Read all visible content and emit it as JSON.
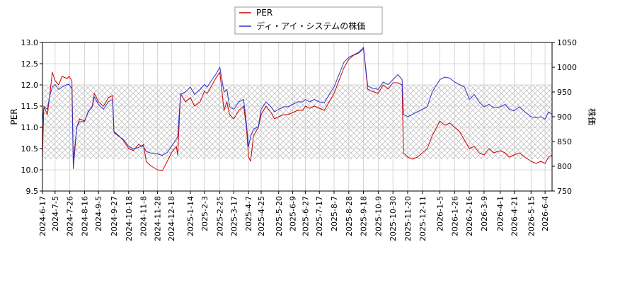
{
  "chart_data": {
    "type": "line",
    "title": "",
    "legend": {
      "placement": "top-center",
      "entries": [
        {
          "label": "PER",
          "color": "#cc0000"
        },
        {
          "label": "ディ・アイ・システムの株価",
          "color": "#3333cc"
        }
      ]
    },
    "y_left": {
      "label": "PER",
      "ylim": [
        9.5,
        13.0
      ],
      "ticks": [
        "9.5",
        "10.0",
        "10.5",
        "11.0",
        "11.5",
        "12.0",
        "12.5",
        "13.0"
      ]
    },
    "y_right": {
      "label": "株価",
      "ylim": [
        750,
        1050
      ],
      "ticks": [
        "750",
        "800",
        "850",
        "900",
        "950",
        "1000",
        "1050"
      ]
    },
    "shaded_band": {
      "per_range": [
        10.25,
        12.0
      ],
      "pattern": "cross-hatch"
    },
    "grid": true,
    "x_range": [
      "2024-06-17",
      "2026-06-14"
    ],
    "x_ticks": [
      "2024-6-17",
      "2024-7-5",
      "2024-7-26",
      "2024-8-16",
      "2024-9-5",
      "2024-9-27",
      "2024-10-18",
      "2024-11-8",
      "2024-11-28",
      "2024-12-18",
      "2025-1-14",
      "2025-2-3",
      "2025-2-25",
      "2025-3-17",
      "2025-4-7",
      "2025-4-25",
      "2025-5-20",
      "2025-6-9",
      "2025-6-27",
      "2025-7-17",
      "2025-8-7",
      "2025-8-28",
      "2025-9-18",
      "2025-10-9",
      "2025-10-30",
      "2025-11-20",
      "2025-12-11",
      "2026-1-5",
      "2026-1-26",
      "2026-2-16",
      "2026-3-9",
      "2026-4-1",
      "2026-4-21",
      "2026-5-15",
      "2026-6-4"
    ],
    "series": [
      {
        "name": "PER",
        "color": "#cc0000",
        "axis": "left",
        "points": [
          [
            "2024-06-17",
            10.3
          ],
          [
            "2024-06-19",
            11.5
          ],
          [
            "2024-06-24",
            11.3
          ],
          [
            "2024-06-27",
            11.7
          ],
          [
            "2024-07-01",
            12.3
          ],
          [
            "2024-07-05",
            12.1
          ],
          [
            "2024-07-10",
            12.0
          ],
          [
            "2024-07-15",
            12.2
          ],
          [
            "2024-07-22",
            12.15
          ],
          [
            "2024-07-25",
            12.2
          ],
          [
            "2024-07-29",
            12.1
          ],
          [
            "2024-07-31",
            10.2
          ],
          [
            "2024-08-05",
            11.0
          ],
          [
            "2024-08-09",
            11.2
          ],
          [
            "2024-08-16",
            11.15
          ],
          [
            "2024-08-21",
            11.35
          ],
          [
            "2024-08-27",
            11.5
          ],
          [
            "2024-08-30",
            11.8
          ],
          [
            "2024-09-05",
            11.6
          ],
          [
            "2024-09-12",
            11.5
          ],
          [
            "2024-09-19",
            11.7
          ],
          [
            "2024-09-25",
            11.75
          ],
          [
            "2024-09-27",
            10.9
          ],
          [
            "2024-10-04",
            10.8
          ],
          [
            "2024-10-10",
            10.7
          ],
          [
            "2024-10-18",
            10.5
          ],
          [
            "2024-10-25",
            10.45
          ],
          [
            "2024-11-01",
            10.6
          ],
          [
            "2024-11-06",
            10.55
          ],
          [
            "2024-11-08",
            10.6
          ],
          [
            "2024-11-12",
            10.2
          ],
          [
            "2024-11-18",
            10.1
          ],
          [
            "2024-11-28",
            10.0
          ],
          [
            "2024-12-05",
            9.98
          ],
          [
            "2024-12-12",
            10.2
          ],
          [
            "2024-12-18",
            10.4
          ],
          [
            "2024-12-25",
            10.55
          ],
          [
            "2024-12-27",
            10.35
          ],
          [
            "2024-12-31",
            11.8
          ],
          [
            "2025-01-07",
            11.6
          ],
          [
            "2025-01-14",
            11.7
          ],
          [
            "2025-01-20",
            11.5
          ],
          [
            "2025-01-28",
            11.6
          ],
          [
            "2025-02-03",
            11.85
          ],
          [
            "2025-02-07",
            11.8
          ],
          [
            "2025-02-14",
            12.0
          ],
          [
            "2025-02-19",
            12.15
          ],
          [
            "2025-02-25",
            12.3
          ],
          [
            "2025-03-03",
            11.4
          ],
          [
            "2025-03-07",
            11.6
          ],
          [
            "2025-03-11",
            11.3
          ],
          [
            "2025-03-17",
            11.2
          ],
          [
            "2025-03-24",
            11.4
          ],
          [
            "2025-03-31",
            11.5
          ],
          [
            "2025-04-04",
            11.0
          ],
          [
            "2025-04-07",
            10.3
          ],
          [
            "2025-04-10",
            10.2
          ],
          [
            "2025-04-14",
            10.8
          ],
          [
            "2025-04-21",
            11.0
          ],
          [
            "2025-04-25",
            11.3
          ],
          [
            "2025-05-02",
            11.5
          ],
          [
            "2025-05-09",
            11.35
          ],
          [
            "2025-05-14",
            11.2
          ],
          [
            "2025-05-20",
            11.25
          ],
          [
            "2025-05-27",
            11.3
          ],
          [
            "2025-06-02",
            11.3
          ],
          [
            "2025-06-09",
            11.35
          ],
          [
            "2025-06-16",
            11.4
          ],
          [
            "2025-06-23",
            11.4
          ],
          [
            "2025-06-27",
            11.5
          ],
          [
            "2025-07-03",
            11.45
          ],
          [
            "2025-07-10",
            11.5
          ],
          [
            "2025-07-17",
            11.45
          ],
          [
            "2025-07-24",
            11.4
          ],
          [
            "2025-07-31",
            11.6
          ],
          [
            "2025-08-07",
            11.8
          ],
          [
            "2025-08-14",
            12.1
          ],
          [
            "2025-08-21",
            12.4
          ],
          [
            "2025-08-28",
            12.6
          ],
          [
            "2025-09-04",
            12.7
          ],
          [
            "2025-09-11",
            12.75
          ],
          [
            "2025-09-18",
            12.85
          ],
          [
            "2025-09-24",
            11.9
          ],
          [
            "2025-09-30",
            11.85
          ],
          [
            "2025-10-09",
            11.8
          ],
          [
            "2025-10-16",
            12.0
          ],
          [
            "2025-10-23",
            11.9
          ],
          [
            "2025-10-30",
            12.05
          ],
          [
            "2025-11-06",
            12.05
          ],
          [
            "2025-11-12",
            12.0
          ],
          [
            "2025-11-14",
            10.4
          ],
          [
            "2025-11-20",
            10.3
          ],
          [
            "2025-11-27",
            10.25
          ],
          [
            "2025-12-04",
            10.3
          ],
          [
            "2025-12-11",
            10.4
          ],
          [
            "2025-12-18",
            10.5
          ],
          [
            "2025-12-25",
            10.8
          ],
          [
            "2026-01-05",
            11.15
          ],
          [
            "2026-01-12",
            11.05
          ],
          [
            "2026-01-19",
            11.1
          ],
          [
            "2026-01-26",
            11.0
          ],
          [
            "2026-02-02",
            10.9
          ],
          [
            "2026-02-09",
            10.7
          ],
          [
            "2026-02-16",
            10.5
          ],
          [
            "2026-02-23",
            10.55
          ],
          [
            "2026-03-02",
            10.4
          ],
          [
            "2026-03-09",
            10.35
          ],
          [
            "2026-03-16",
            10.5
          ],
          [
            "2026-03-23",
            10.4
          ],
          [
            "2026-04-01",
            10.45
          ],
          [
            "2026-04-08",
            10.4
          ],
          [
            "2026-04-14",
            10.3
          ],
          [
            "2026-04-21",
            10.35
          ],
          [
            "2026-04-28",
            10.4
          ],
          [
            "2026-05-06",
            10.3
          ],
          [
            "2026-05-15",
            10.2
          ],
          [
            "2026-05-22",
            10.15
          ],
          [
            "2026-05-29",
            10.2
          ],
          [
            "2026-06-04",
            10.15
          ],
          [
            "2026-06-09",
            10.3
          ],
          [
            "2026-06-14",
            10.35
          ]
        ]
      },
      {
        "name": "ディ・アイ・システムの株価",
        "color": "#3333cc",
        "axis": "right",
        "points": [
          [
            "2024-06-17",
            890
          ],
          [
            "2024-06-19",
            920
          ],
          [
            "2024-06-24",
            915
          ],
          [
            "2024-06-27",
            940
          ],
          [
            "2024-07-01",
            960
          ],
          [
            "2024-07-05",
            965
          ],
          [
            "2024-07-10",
            955
          ],
          [
            "2024-07-15",
            960
          ],
          [
            "2024-07-22",
            965
          ],
          [
            "2024-07-25",
            965
          ],
          [
            "2024-07-29",
            957
          ],
          [
            "2024-07-31",
            795
          ],
          [
            "2024-08-05",
            880
          ],
          [
            "2024-08-09",
            890
          ],
          [
            "2024-08-16",
            890
          ],
          [
            "2024-08-21",
            910
          ],
          [
            "2024-08-27",
            920
          ],
          [
            "2024-08-30",
            940
          ],
          [
            "2024-09-05",
            925
          ],
          [
            "2024-09-12",
            915
          ],
          [
            "2024-09-19",
            930
          ],
          [
            "2024-09-25",
            935
          ],
          [
            "2024-09-27",
            868
          ],
          [
            "2024-10-04",
            860
          ],
          [
            "2024-10-10",
            855
          ],
          [
            "2024-10-18",
            840
          ],
          [
            "2024-10-25",
            835
          ],
          [
            "2024-11-01",
            838
          ],
          [
            "2024-11-06",
            842
          ],
          [
            "2024-11-08",
            840
          ],
          [
            "2024-11-12",
            830
          ],
          [
            "2024-11-18",
            827
          ],
          [
            "2024-11-28",
            825
          ],
          [
            "2024-12-05",
            822
          ],
          [
            "2024-12-12",
            828
          ],
          [
            "2024-12-18",
            840
          ],
          [
            "2024-12-25",
            855
          ],
          [
            "2024-12-27",
            860
          ],
          [
            "2024-12-31",
            945
          ],
          [
            "2025-01-07",
            950
          ],
          [
            "2025-01-14",
            960
          ],
          [
            "2025-01-20",
            945
          ],
          [
            "2025-01-28",
            955
          ],
          [
            "2025-02-03",
            965
          ],
          [
            "2025-02-07",
            960
          ],
          [
            "2025-02-14",
            975
          ],
          [
            "2025-02-19",
            985
          ],
          [
            "2025-02-25",
            1000
          ],
          [
            "2025-03-03",
            950
          ],
          [
            "2025-03-07",
            955
          ],
          [
            "2025-03-11",
            920
          ],
          [
            "2025-03-17",
            915
          ],
          [
            "2025-03-24",
            930
          ],
          [
            "2025-03-31",
            935
          ],
          [
            "2025-04-04",
            885
          ],
          [
            "2025-04-07",
            840
          ],
          [
            "2025-04-10",
            860
          ],
          [
            "2025-04-14",
            875
          ],
          [
            "2025-04-21",
            880
          ],
          [
            "2025-04-25",
            915
          ],
          [
            "2025-05-02",
            930
          ],
          [
            "2025-05-09",
            920
          ],
          [
            "2025-05-14",
            910
          ],
          [
            "2025-05-20",
            915
          ],
          [
            "2025-05-27",
            920
          ],
          [
            "2025-06-02",
            920
          ],
          [
            "2025-06-09",
            925
          ],
          [
            "2025-06-16",
            930
          ],
          [
            "2025-06-23",
            930
          ],
          [
            "2025-06-27",
            935
          ],
          [
            "2025-07-03",
            930
          ],
          [
            "2025-07-10",
            935
          ],
          [
            "2025-07-17",
            930
          ],
          [
            "2025-07-24",
            928
          ],
          [
            "2025-07-31",
            945
          ],
          [
            "2025-08-07",
            960
          ],
          [
            "2025-08-14",
            985
          ],
          [
            "2025-08-21",
            1010
          ],
          [
            "2025-08-28",
            1020
          ],
          [
            "2025-09-04",
            1025
          ],
          [
            "2025-09-11",
            1030
          ],
          [
            "2025-09-18",
            1040
          ],
          [
            "2025-09-24",
            962
          ],
          [
            "2025-09-30",
            958
          ],
          [
            "2025-10-09",
            955
          ],
          [
            "2025-10-16",
            970
          ],
          [
            "2025-10-23",
            965
          ],
          [
            "2025-10-30",
            975
          ],
          [
            "2025-11-06",
            985
          ],
          [
            "2025-11-12",
            975
          ],
          [
            "2025-11-14",
            905
          ],
          [
            "2025-11-20",
            900
          ],
          [
            "2025-11-27",
            905
          ],
          [
            "2025-12-04",
            910
          ],
          [
            "2025-12-11",
            915
          ],
          [
            "2025-12-18",
            920
          ],
          [
            "2025-12-25",
            950
          ],
          [
            "2026-01-05",
            975
          ],
          [
            "2026-01-12",
            980
          ],
          [
            "2026-01-19",
            978
          ],
          [
            "2026-01-26",
            970
          ],
          [
            "2026-02-02",
            965
          ],
          [
            "2026-02-09",
            960
          ],
          [
            "2026-02-16",
            935
          ],
          [
            "2026-02-23",
            945
          ],
          [
            "2026-03-02",
            930
          ],
          [
            "2026-03-09",
            920
          ],
          [
            "2026-03-16",
            925
          ],
          [
            "2026-03-23",
            918
          ],
          [
            "2026-04-01",
            920
          ],
          [
            "2026-04-08",
            925
          ],
          [
            "2026-04-14",
            915
          ],
          [
            "2026-04-21",
            912
          ],
          [
            "2026-04-28",
            920
          ],
          [
            "2026-05-06",
            910
          ],
          [
            "2026-05-15",
            900
          ],
          [
            "2026-05-22",
            898
          ],
          [
            "2026-05-29",
            900
          ],
          [
            "2026-06-04",
            895
          ],
          [
            "2026-06-09",
            910
          ],
          [
            "2026-06-14",
            905
          ]
        ]
      }
    ]
  }
}
